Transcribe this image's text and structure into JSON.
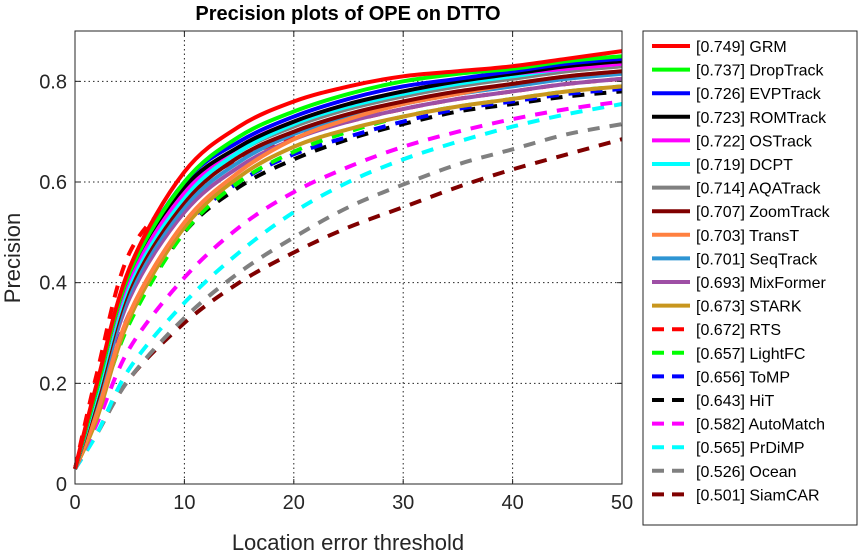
{
  "chart_data": {
    "type": "line",
    "title": "Precision plots of OPE on DTTO",
    "xlabel": "Location error threshold",
    "ylabel": "Precision",
    "xlim": [
      0,
      50
    ],
    "ylim": [
      0,
      0.9
    ],
    "xticks": [
      0,
      10,
      20,
      30,
      40,
      50
    ],
    "yticks": [
      0,
      0.2,
      0.4,
      0.6,
      0.8
    ],
    "ytick_labels": [
      "0",
      "0.2",
      "0.4",
      "0.6",
      "0.8"
    ],
    "xtick_labels": [
      "0",
      "10",
      "20",
      "30",
      "40",
      "50"
    ],
    "grid": true,
    "legend_position": "outside-right",
    "series": [
      {
        "name": "GRM",
        "score": "[0.749]",
        "color": "#ff0000",
        "style": "solid",
        "x": [
          0,
          2,
          5,
          10,
          15,
          20,
          25,
          30,
          35,
          40,
          45,
          50
        ],
        "y": [
          0.03,
          0.2,
          0.43,
          0.62,
          0.71,
          0.76,
          0.79,
          0.81,
          0.82,
          0.83,
          0.845,
          0.86
        ]
      },
      {
        "name": "DropTrack",
        "score": "[0.737]",
        "color": "#00ff00",
        "style": "solid",
        "x": [
          0,
          2,
          5,
          10,
          15,
          20,
          25,
          30,
          35,
          40,
          45,
          50
        ],
        "y": [
          0.03,
          0.19,
          0.42,
          0.6,
          0.69,
          0.74,
          0.775,
          0.8,
          0.815,
          0.825,
          0.84,
          0.85
        ]
      },
      {
        "name": "EVPTrack",
        "score": "[0.726]",
        "color": "#0000ff",
        "style": "solid",
        "x": [
          0,
          2,
          5,
          10,
          15,
          20,
          25,
          30,
          35,
          40,
          45,
          50
        ],
        "y": [
          0.03,
          0.19,
          0.42,
          0.6,
          0.68,
          0.73,
          0.765,
          0.79,
          0.805,
          0.82,
          0.835,
          0.845
        ]
      },
      {
        "name": "ROMTrack",
        "score": "[0.723]",
        "color": "#000000",
        "style": "solid",
        "x": [
          0,
          2,
          5,
          10,
          15,
          20,
          25,
          30,
          35,
          40,
          45,
          50
        ],
        "y": [
          0.03,
          0.19,
          0.42,
          0.59,
          0.67,
          0.72,
          0.755,
          0.78,
          0.8,
          0.815,
          0.83,
          0.84
        ]
      },
      {
        "name": "OSTrack",
        "score": "[0.722]",
        "color": "#ff00ff",
        "style": "solid",
        "x": [
          0,
          2,
          5,
          10,
          15,
          20,
          25,
          30,
          35,
          40,
          45,
          50
        ],
        "y": [
          0.03,
          0.19,
          0.41,
          0.58,
          0.67,
          0.72,
          0.755,
          0.78,
          0.8,
          0.815,
          0.825,
          0.835
        ]
      },
      {
        "name": "DCPT",
        "score": "[0.719]",
        "color": "#00ffff",
        "style": "solid",
        "x": [
          0,
          2,
          5,
          10,
          15,
          20,
          25,
          30,
          35,
          40,
          45,
          50
        ],
        "y": [
          0.03,
          0.18,
          0.4,
          0.57,
          0.66,
          0.715,
          0.75,
          0.775,
          0.795,
          0.81,
          0.825,
          0.835
        ]
      },
      {
        "name": "AQATrack",
        "score": "[0.714]",
        "color": "#808080",
        "style": "solid",
        "x": [
          0,
          2,
          5,
          10,
          15,
          20,
          25,
          30,
          35,
          40,
          45,
          50
        ],
        "y": [
          0.03,
          0.18,
          0.4,
          0.57,
          0.66,
          0.71,
          0.745,
          0.77,
          0.79,
          0.805,
          0.82,
          0.83
        ]
      },
      {
        "name": "ZoomTrack",
        "score": "[0.707]",
        "color": "#800000",
        "style": "solid",
        "x": [
          0,
          2,
          5,
          10,
          15,
          20,
          25,
          30,
          35,
          40,
          45,
          50
        ],
        "y": [
          0.03,
          0.17,
          0.39,
          0.56,
          0.65,
          0.7,
          0.735,
          0.76,
          0.78,
          0.795,
          0.81,
          0.82
        ]
      },
      {
        "name": "TransT",
        "score": "[0.703]",
        "color": "#ff8040",
        "style": "solid",
        "x": [
          0,
          2,
          5,
          10,
          15,
          20,
          25,
          30,
          35,
          40,
          45,
          50
        ],
        "y": [
          0.03,
          0.14,
          0.34,
          0.52,
          0.62,
          0.685,
          0.725,
          0.755,
          0.775,
          0.795,
          0.81,
          0.82
        ]
      },
      {
        "name": "SeqTrack",
        "score": "[0.701]",
        "color": "#2e95d3",
        "style": "solid",
        "x": [
          0,
          2,
          5,
          10,
          15,
          20,
          25,
          30,
          35,
          40,
          45,
          50
        ],
        "y": [
          0.03,
          0.16,
          0.38,
          0.55,
          0.64,
          0.695,
          0.73,
          0.755,
          0.775,
          0.79,
          0.805,
          0.815
        ]
      },
      {
        "name": "MixFormer",
        "score": "[0.693]",
        "color": "#9e4fa5",
        "style": "solid",
        "x": [
          0,
          2,
          5,
          10,
          15,
          20,
          25,
          30,
          35,
          40,
          45,
          50
        ],
        "y": [
          0.03,
          0.16,
          0.37,
          0.54,
          0.63,
          0.685,
          0.72,
          0.745,
          0.765,
          0.78,
          0.795,
          0.805
        ]
      },
      {
        "name": "STARK",
        "score": "[0.673]",
        "color": "#c8961e",
        "style": "solid",
        "x": [
          0,
          2,
          5,
          10,
          15,
          20,
          25,
          30,
          35,
          40,
          45,
          50
        ],
        "y": [
          0.03,
          0.13,
          0.33,
          0.51,
          0.61,
          0.67,
          0.705,
          0.73,
          0.75,
          0.765,
          0.78,
          0.79
        ]
      },
      {
        "name": "RTS",
        "score": "[0.672]",
        "color": "#ff0000",
        "style": "dashed",
        "x": [
          0,
          2,
          5,
          10,
          15,
          20,
          25,
          30,
          35,
          40,
          45,
          50
        ],
        "y": [
          0.03,
          0.22,
          0.46,
          0.58,
          0.645,
          0.69,
          0.72,
          0.745,
          0.765,
          0.78,
          0.795,
          0.805
        ]
      },
      {
        "name": "LightFC",
        "score": "[0.657]",
        "color": "#00ff00",
        "style": "dashed",
        "x": [
          0,
          2,
          5,
          10,
          15,
          20,
          25,
          30,
          35,
          40,
          45,
          50
        ],
        "y": [
          0.03,
          0.14,
          0.32,
          0.5,
          0.6,
          0.66,
          0.7,
          0.73,
          0.75,
          0.765,
          0.78,
          0.79
        ]
      },
      {
        "name": "ToMP",
        "score": "[0.656]",
        "color": "#0000ff",
        "style": "dashed",
        "x": [
          0,
          2,
          5,
          10,
          15,
          20,
          25,
          30,
          35,
          40,
          45,
          50
        ],
        "y": [
          0.03,
          0.15,
          0.34,
          0.51,
          0.6,
          0.655,
          0.69,
          0.72,
          0.745,
          0.76,
          0.775,
          0.785
        ]
      },
      {
        "name": "HiT",
        "score": "[0.643]",
        "color": "#000000",
        "style": "dashed",
        "x": [
          0,
          2,
          5,
          10,
          15,
          20,
          25,
          30,
          35,
          40,
          45,
          50
        ],
        "y": [
          0.03,
          0.14,
          0.33,
          0.5,
          0.59,
          0.645,
          0.685,
          0.715,
          0.74,
          0.755,
          0.77,
          0.78
        ]
      },
      {
        "name": "AutoMatch",
        "score": "[0.582]",
        "color": "#ff00ff",
        "style": "dashed",
        "x": [
          0,
          2,
          5,
          10,
          15,
          20,
          25,
          30,
          35,
          40,
          45,
          50
        ],
        "y": [
          0.03,
          0.12,
          0.27,
          0.41,
          0.51,
          0.58,
          0.63,
          0.67,
          0.7,
          0.725,
          0.745,
          0.76
        ]
      },
      {
        "name": "PrDiMP",
        "score": "[0.565]",
        "color": "#00ffff",
        "style": "dashed",
        "x": [
          0,
          2,
          5,
          10,
          15,
          20,
          25,
          30,
          35,
          40,
          45,
          50
        ],
        "y": [
          0.03,
          0.1,
          0.23,
          0.36,
          0.46,
          0.54,
          0.6,
          0.645,
          0.68,
          0.71,
          0.735,
          0.755
        ]
      },
      {
        "name": "Ocean",
        "score": "[0.526]",
        "color": "#808080",
        "style": "dashed",
        "x": [
          0,
          2,
          5,
          10,
          15,
          20,
          25,
          30,
          35,
          40,
          45,
          50
        ],
        "y": [
          0.03,
          0.1,
          0.21,
          0.33,
          0.42,
          0.49,
          0.55,
          0.595,
          0.635,
          0.665,
          0.695,
          0.715
        ]
      },
      {
        "name": "SiamCAR",
        "score": "[0.501]",
        "color": "#800000",
        "style": "dashed",
        "x": [
          0,
          2,
          5,
          10,
          15,
          20,
          25,
          30,
          35,
          40,
          45,
          50
        ],
        "y": [
          0.03,
          0.1,
          0.21,
          0.32,
          0.4,
          0.46,
          0.51,
          0.55,
          0.59,
          0.625,
          0.655,
          0.685
        ]
      }
    ]
  }
}
